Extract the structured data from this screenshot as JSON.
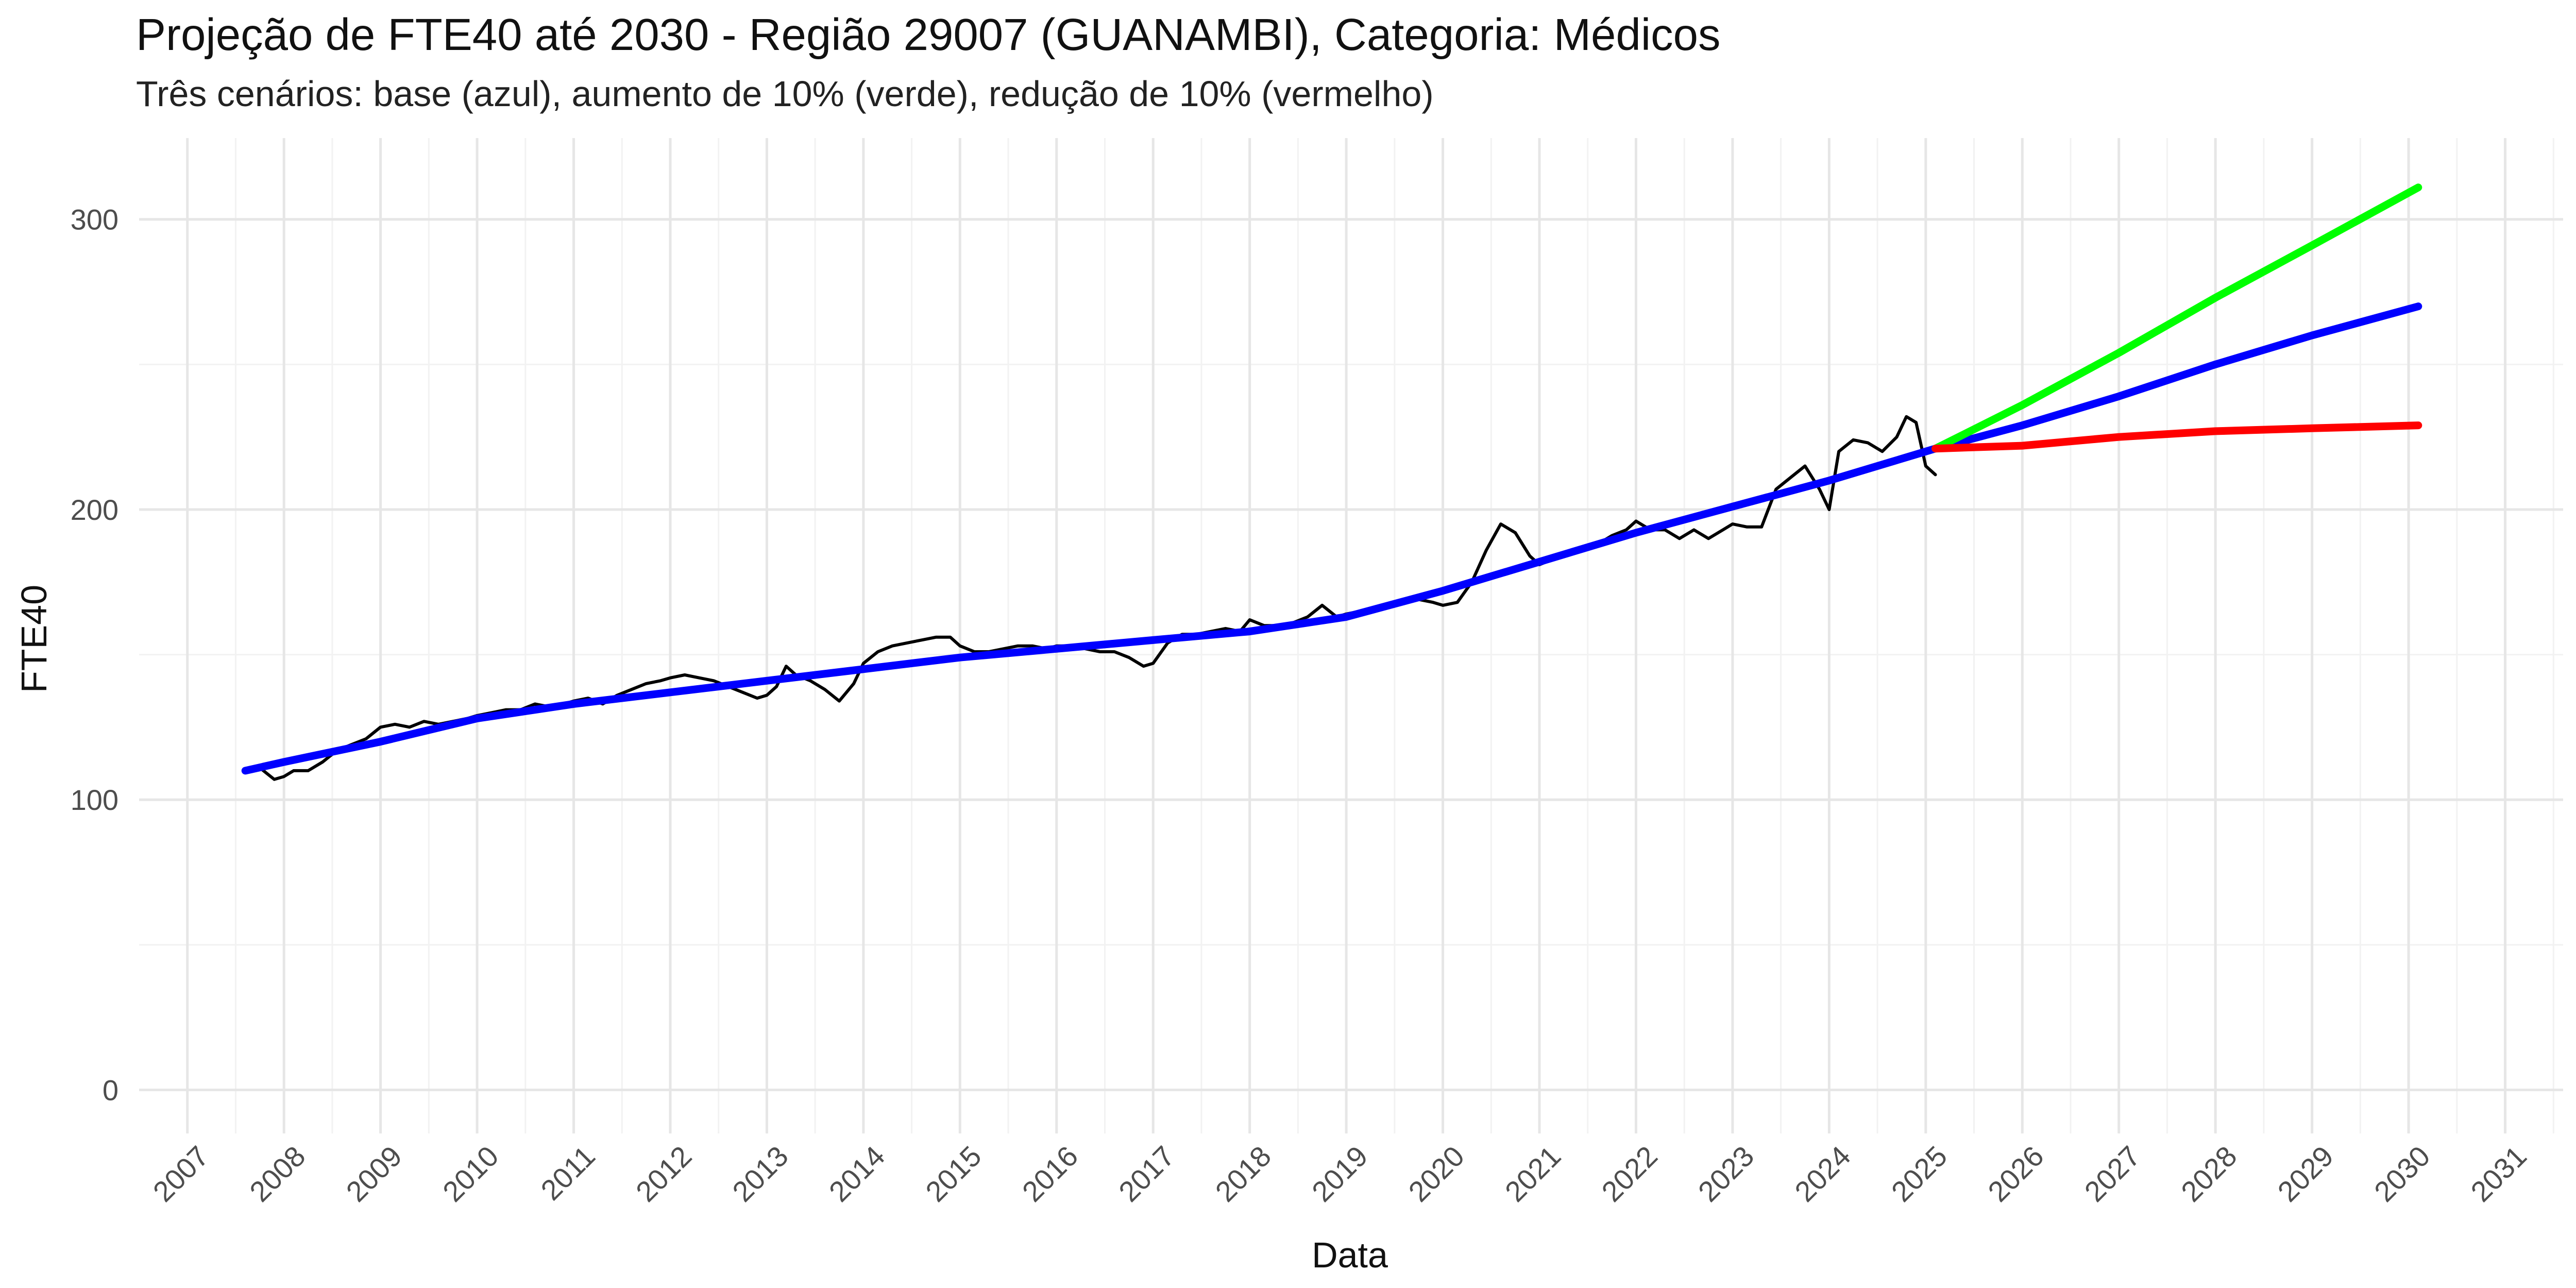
{
  "chart_data": {
    "type": "line",
    "title": "Projeção de FTE40 até 2030 - Região 29007 (GUANAMBI), Categoria: Médicos",
    "subtitle": "Três cenários: base (azul), aumento de 10% (verde), redução de 10% (vermelho)",
    "xlabel": "Data",
    "ylabel": "FTE40",
    "xlim": [
      2006.5,
      2031.6
    ],
    "ylim": [
      -15,
      328
    ],
    "y_ticks": [
      0,
      100,
      200,
      300
    ],
    "x_ticks": [
      "2007",
      "2008",
      "2009",
      "2010",
      "2011",
      "2012",
      "2013",
      "2014",
      "2015",
      "2016",
      "2017",
      "2018",
      "2019",
      "2020",
      "2021",
      "2022",
      "2023",
      "2024",
      "2025",
      "2026",
      "2027",
      "2028",
      "2029",
      "2030",
      "2031"
    ],
    "grid": true,
    "legend": "none",
    "series": [
      {
        "color": "#000000",
        "x": [
          2007.6,
          2007.75,
          2007.9,
          2008.0,
          2008.1,
          2008.25,
          2008.4,
          2008.55,
          2008.7,
          2008.85,
          2009.0,
          2009.15,
          2009.3,
          2009.45,
          2009.6,
          2009.75,
          2009.9,
          2010.0,
          2010.15,
          2010.3,
          2010.45,
          2010.6,
          2010.75,
          2010.9,
          2011.0,
          2011.15,
          2011.3,
          2011.45,
          2011.6,
          2011.75,
          2011.9,
          2012.0,
          2012.15,
          2012.3,
          2012.45,
          2012.6,
          2012.75,
          2012.9,
          2013.0,
          2013.1,
          2013.2,
          2013.3,
          2013.45,
          2013.6,
          2013.75,
          2013.9,
          2014.0,
          2014.15,
          2014.3,
          2014.45,
          2014.6,
          2014.75,
          2014.9,
          2015.0,
          2015.15,
          2015.3,
          2015.45,
          2015.6,
          2015.75,
          2015.9,
          2016.0,
          2016.15,
          2016.3,
          2016.45,
          2016.6,
          2016.75,
          2016.9,
          2017.0,
          2017.15,
          2017.3,
          2017.45,
          2017.6,
          2017.75,
          2017.9,
          2018.0,
          2018.15,
          2018.3,
          2018.45,
          2018.6,
          2018.75,
          2018.9,
          2019.0,
          2019.15,
          2019.3,
          2019.45,
          2019.6,
          2019.75,
          2019.9,
          2020.0,
          2020.15,
          2020.3,
          2020.45,
          2020.6,
          2020.75,
          2020.9,
          2021.0,
          2021.15,
          2021.3,
          2021.45,
          2021.6,
          2021.75,
          2021.9,
          2022.0,
          2022.15,
          2022.3,
          2022.45,
          2022.6,
          2022.75,
          2022.9,
          2023.0,
          2023.15,
          2023.3,
          2023.45,
          2023.6,
          2023.75,
          2023.9,
          2024.0,
          2024.1,
          2024.25,
          2024.4,
          2024.55,
          2024.7,
          2024.8,
          2024.9,
          2025.0,
          2025.1
        ],
        "values": [
          110,
          111,
          107,
          108,
          110,
          110,
          113,
          117,
          119,
          121,
          125,
          126,
          125,
          127,
          126,
          127,
          128,
          129,
          130,
          131,
          131,
          133,
          132,
          133,
          134,
          135,
          133,
          136,
          138,
          140,
          141,
          142,
          143,
          142,
          141,
          139,
          137,
          135,
          136,
          139,
          146,
          143,
          141,
          138,
          134,
          140,
          147,
          151,
          153,
          154,
          155,
          156,
          156,
          153,
          151,
          151,
          152,
          153,
          153,
          152,
          153,
          153,
          152,
          151,
          151,
          149,
          146,
          147,
          154,
          157,
          157,
          158,
          159,
          158,
          162,
          160,
          160,
          161,
          163,
          167,
          163,
          164,
          165,
          166,
          167,
          168,
          169,
          168,
          167,
          168,
          175,
          186,
          195,
          192,
          184,
          181,
          183,
          185,
          186,
          188,
          191,
          193,
          196,
          193,
          193,
          190,
          193,
          190,
          193,
          195,
          194,
          194,
          207,
          211,
          215,
          207,
          200,
          220,
          224,
          223,
          220,
          225,
          232,
          230,
          215,
          212
        ]
      },
      {
        "color": "#0000ff",
        "x": [
          2007.6,
          2008,
          2009,
          2010,
          2011,
          2012,
          2013,
          2014,
          2015,
          2016,
          2017,
          2018,
          2019,
          2020,
          2021,
          2022,
          2023,
          2024,
          2025.1
        ],
        "values": [
          110,
          113,
          120,
          128,
          133,
          137,
          141,
          145,
          149,
          152,
          155,
          158,
          163,
          172,
          182,
          192,
          201,
          210,
          221
        ]
      },
      {
        "color": "#0000ff",
        "x": [
          2025.1,
          2026,
          2027,
          2028,
          2029,
          2030.1
        ],
        "values": [
          221,
          229,
          239,
          250,
          260,
          270
        ]
      },
      {
        "color": "#00ff00",
        "x": [
          2025.1,
          2026,
          2027,
          2028,
          2029,
          2030.1
        ],
        "values": [
          221,
          236,
          254,
          273,
          291,
          311
        ]
      },
      {
        "color": "#ff0000",
        "x": [
          2025.1,
          2026,
          2027,
          2028,
          2029,
          2030.1
        ],
        "values": [
          221,
          222,
          225,
          227,
          228,
          229
        ]
      }
    ]
  }
}
